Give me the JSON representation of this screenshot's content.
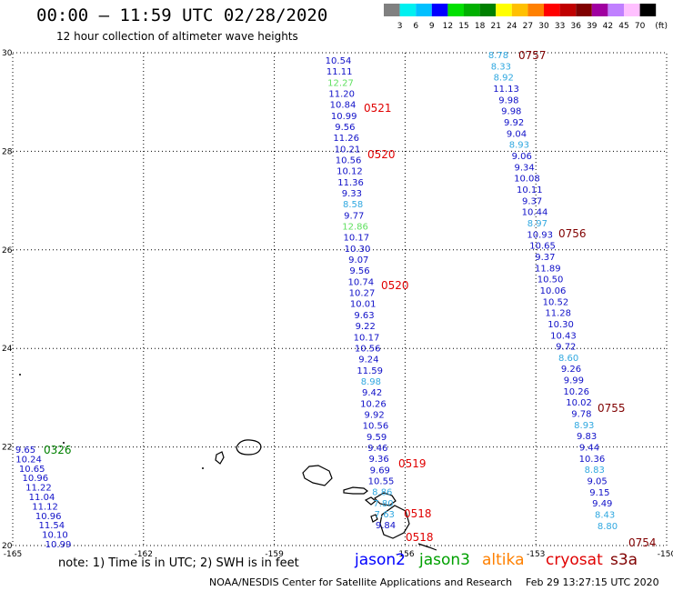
{
  "header": {
    "title": "00:00 – 11:59 UTC 02/28/2020",
    "subtitle": "12 hour collection of altimeter wave heights"
  },
  "color_scale": {
    "labels": [
      "3",
      "6",
      "9",
      "12",
      "15",
      "18",
      "21",
      "24",
      "27",
      "30",
      "33",
      "36",
      "39",
      "42",
      "45",
      "70"
    ],
    "unit": "(ft)",
    "colors": [
      "#808080",
      "#00f0f0",
      "#00c0ff",
      "#0000ff",
      "#00e000",
      "#00b000",
      "#008000",
      "#ffff00",
      "#ffc000",
      "#ff8000",
      "#ff0000",
      "#c00000",
      "#800000",
      "#a000a0",
      "#c080ff",
      "#ffc0ff",
      "#000000"
    ]
  },
  "map": {
    "lon_range": [
      -165,
      -150
    ],
    "lat_range": [
      20,
      30
    ],
    "lon_ticks": [
      "-165",
      "-162",
      "-159",
      "-156",
      "-153",
      "-150"
    ],
    "lat_ticks": [
      "30",
      "28",
      "26",
      "24",
      "22",
      "20"
    ],
    "plot_color": "#0000c8"
  },
  "tracks": {
    "track_a": {
      "values": [
        {
          "v": "10.54",
          "c": "#1010c8"
        },
        {
          "v": "11.11",
          "c": "#1010c8"
        },
        {
          "v": "12.27",
          "c": "#60e060"
        },
        {
          "v": "11.20",
          "c": "#1010c8"
        },
        {
          "v": "10.84",
          "c": "#1010c8"
        },
        {
          "v": "10.99",
          "c": "#1010c8"
        },
        {
          "v": "9.56",
          "c": "#1010c8"
        },
        {
          "v": "11.26",
          "c": "#1010c8"
        },
        {
          "v": "10.21",
          "c": "#1010c8"
        },
        {
          "v": "10.56",
          "c": "#1010c8"
        },
        {
          "v": "10.12",
          "c": "#1010c8"
        },
        {
          "v": "11.36",
          "c": "#1010c8"
        },
        {
          "v": "9.33",
          "c": "#1010c8"
        },
        {
          "v": "8.58",
          "c": "#30a8e0"
        },
        {
          "v": "9.77",
          "c": "#1010c8"
        },
        {
          "v": "12.86",
          "c": "#60e060"
        },
        {
          "v": "10.17",
          "c": "#1010c8"
        },
        {
          "v": "10.30",
          "c": "#1010c8"
        },
        {
          "v": "9.07",
          "c": "#1010c8"
        },
        {
          "v": "9.56",
          "c": "#1010c8"
        },
        {
          "v": "10.74",
          "c": "#1010c8"
        },
        {
          "v": "10.27",
          "c": "#1010c8"
        },
        {
          "v": "10.01",
          "c": "#1010c8"
        },
        {
          "v": "9.63",
          "c": "#1010c8"
        },
        {
          "v": "9.22",
          "c": "#1010c8"
        },
        {
          "v": "10.17",
          "c": "#1010c8"
        },
        {
          "v": "10.56",
          "c": "#1010c8"
        },
        {
          "v": "9.24",
          "c": "#1010c8"
        },
        {
          "v": "11.59",
          "c": "#1010c8"
        },
        {
          "v": "8.98",
          "c": "#30a8e0"
        },
        {
          "v": "9.42",
          "c": "#1010c8"
        },
        {
          "v": "10.26",
          "c": "#1010c8"
        },
        {
          "v": "9.92",
          "c": "#1010c8"
        },
        {
          "v": "10.56",
          "c": "#1010c8"
        },
        {
          "v": "9.59",
          "c": "#1010c8"
        },
        {
          "v": "9.46",
          "c": "#1010c8"
        },
        {
          "v": "9.36",
          "c": "#1010c8"
        },
        {
          "v": "9.69",
          "c": "#1010c8"
        },
        {
          "v": "10.55",
          "c": "#1010c8"
        },
        {
          "v": "8.86",
          "c": "#30a8e0"
        },
        {
          "v": "7.80",
          "c": "#30a8e0"
        },
        {
          "v": "7.63",
          "c": "#30a8e0"
        },
        {
          "v": "9.84",
          "c": "#1010c8"
        }
      ],
      "time_labels": [
        {
          "t": "0521",
          "c": "#e00000"
        },
        {
          "t": "0520",
          "c": "#e00000"
        },
        {
          "t": "0520",
          "c": "#e00000"
        },
        {
          "t": "0519",
          "c": "#e00000"
        },
        {
          "t": "0518",
          "c": "#e00000"
        },
        {
          "t": "0518",
          "c": "#e00000"
        }
      ]
    },
    "track_b": {
      "values": [
        {
          "v": "8.78",
          "c": "#30a8e0"
        },
        {
          "v": "8.33",
          "c": "#30a8e0"
        },
        {
          "v": "8.92",
          "c": "#30a8e0"
        },
        {
          "v": "11.13",
          "c": "#1010c8"
        },
        {
          "v": "9.98",
          "c": "#1010c8"
        },
        {
          "v": "9.98",
          "c": "#1010c8"
        },
        {
          "v": "9.92",
          "c": "#1010c8"
        },
        {
          "v": "9.04",
          "c": "#1010c8"
        },
        {
          "v": "8.93",
          "c": "#30a8e0"
        },
        {
          "v": "9.06",
          "c": "#1010c8"
        },
        {
          "v": "9.34",
          "c": "#1010c8"
        },
        {
          "v": "10.08",
          "c": "#1010c8"
        },
        {
          "v": "10.11",
          "c": "#1010c8"
        },
        {
          "v": "9.37",
          "c": "#1010c8"
        },
        {
          "v": "10.44",
          "c": "#1010c8"
        },
        {
          "v": "8.97",
          "c": "#30a8e0"
        },
        {
          "v": "10.93",
          "c": "#1010c8"
        },
        {
          "v": "10.65",
          "c": "#1010c8"
        },
        {
          "v": "9.37",
          "c": "#1010c8"
        },
        {
          "v": "11.89",
          "c": "#1010c8"
        },
        {
          "v": "10.50",
          "c": "#1010c8"
        },
        {
          "v": "10.06",
          "c": "#1010c8"
        },
        {
          "v": "10.52",
          "c": "#1010c8"
        },
        {
          "v": "11.28",
          "c": "#1010c8"
        },
        {
          "v": "10.30",
          "c": "#1010c8"
        },
        {
          "v": "10.43",
          "c": "#1010c8"
        },
        {
          "v": "9.72",
          "c": "#1010c8"
        },
        {
          "v": "8.60",
          "c": "#30a8e0"
        },
        {
          "v": "9.26",
          "c": "#1010c8"
        },
        {
          "v": "9.99",
          "c": "#1010c8"
        },
        {
          "v": "10.26",
          "c": "#1010c8"
        },
        {
          "v": "10.02",
          "c": "#1010c8"
        },
        {
          "v": "9.78",
          "c": "#1010c8"
        },
        {
          "v": "8.93",
          "c": "#30a8e0"
        },
        {
          "v": "9.83",
          "c": "#1010c8"
        },
        {
          "v": "9.44",
          "c": "#1010c8"
        },
        {
          "v": "10.36",
          "c": "#1010c8"
        },
        {
          "v": "8.83",
          "c": "#30a8e0"
        },
        {
          "v": "9.05",
          "c": "#1010c8"
        },
        {
          "v": "9.15",
          "c": "#1010c8"
        },
        {
          "v": "9.49",
          "c": "#1010c8"
        },
        {
          "v": "8.43",
          "c": "#30a8e0"
        },
        {
          "v": "8.80",
          "c": "#30a8e0"
        }
      ],
      "time_labels": [
        {
          "t": "0757",
          "c": "#800000"
        },
        {
          "t": "0756",
          "c": "#800000"
        },
        {
          "t": "0755",
          "c": "#800000"
        },
        {
          "t": "0754",
          "c": "#800000"
        }
      ]
    },
    "track_c": {
      "values": [
        {
          "v": "9.65",
          "c": "#1010c8"
        },
        {
          "v": "10.24",
          "c": "#1010c8"
        },
        {
          "v": "10.65",
          "c": "#1010c8"
        },
        {
          "v": "10.96",
          "c": "#1010c8"
        },
        {
          "v": "11.22",
          "c": "#1010c8"
        },
        {
          "v": "11.04",
          "c": "#1010c8"
        },
        {
          "v": "11.12",
          "c": "#1010c8"
        },
        {
          "v": "10.96",
          "c": "#1010c8"
        },
        {
          "v": "11.54",
          "c": "#1010c8"
        },
        {
          "v": "10.10",
          "c": "#1010c8"
        },
        {
          "v": "10.99",
          "c": "#1010c8"
        }
      ],
      "time_labels": [
        {
          "t": "0326",
          "c": "#008000"
        }
      ]
    }
  },
  "footer": {
    "note": "note: 1) Time is in UTC; 2) SWH is in feet",
    "satellites": [
      {
        "name": "jason2",
        "color": "#0000ff"
      },
      {
        "name": "jason3",
        "color": "#00a000"
      },
      {
        "name": "altika",
        "color": "#ff8000"
      },
      {
        "name": "cryosat",
        "color": "#e00000"
      },
      {
        "name": "s3a",
        "color": "#800000"
      }
    ],
    "credit": "NOAA/NESDIS Center for Satellite Applications and Research",
    "generated": "Feb 29 13:27:15 UTC 2020"
  }
}
